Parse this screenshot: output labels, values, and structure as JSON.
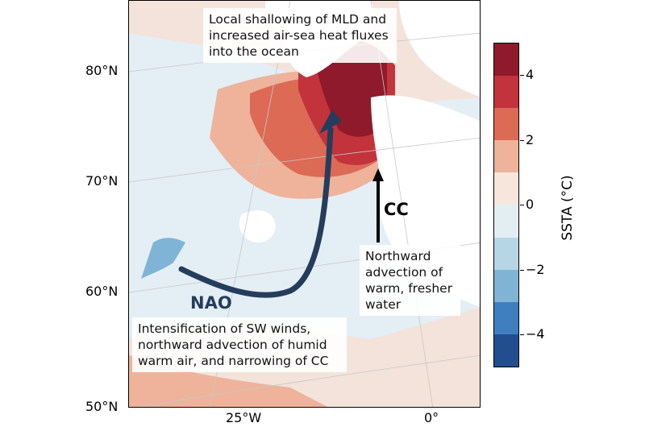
{
  "map": {
    "lat_labels": [
      "80°N",
      "70°N",
      "60°N",
      "50°N"
    ],
    "lon_labels": [
      "25°W",
      "0°"
    ]
  },
  "annotations": {
    "top_box": [
      "Local shallowing of MLD and",
      "increased air-sea heat fluxes",
      "into the ocean"
    ],
    "right_box": [
      "Northward",
      "advection of",
      "warm, fresher",
      "water"
    ],
    "bottom_box": [
      "Intensification of SW winds,",
      "northward advection of humid",
      "warm air, and narrowing of CC"
    ],
    "nao_label": "NAO",
    "cc_label": "CC"
  },
  "colorbar": {
    "title": "SSTA (°C)",
    "ticks": [
      "4",
      "2",
      "0",
      "−2",
      "−4"
    ],
    "range": [
      -5,
      5
    ],
    "colors": [
      "#8e1a2b",
      "#c2333c",
      "#dc6a55",
      "#eeb39a",
      "#f7e6dc",
      "#e3eef3",
      "#b6d6e6",
      "#7fb4d6",
      "#3f7fbf",
      "#224e8f"
    ]
  },
  "colors": {
    "nao_arrow": "#253d5c",
    "cc_arrow": "#000000",
    "land": "#ffffff"
  }
}
